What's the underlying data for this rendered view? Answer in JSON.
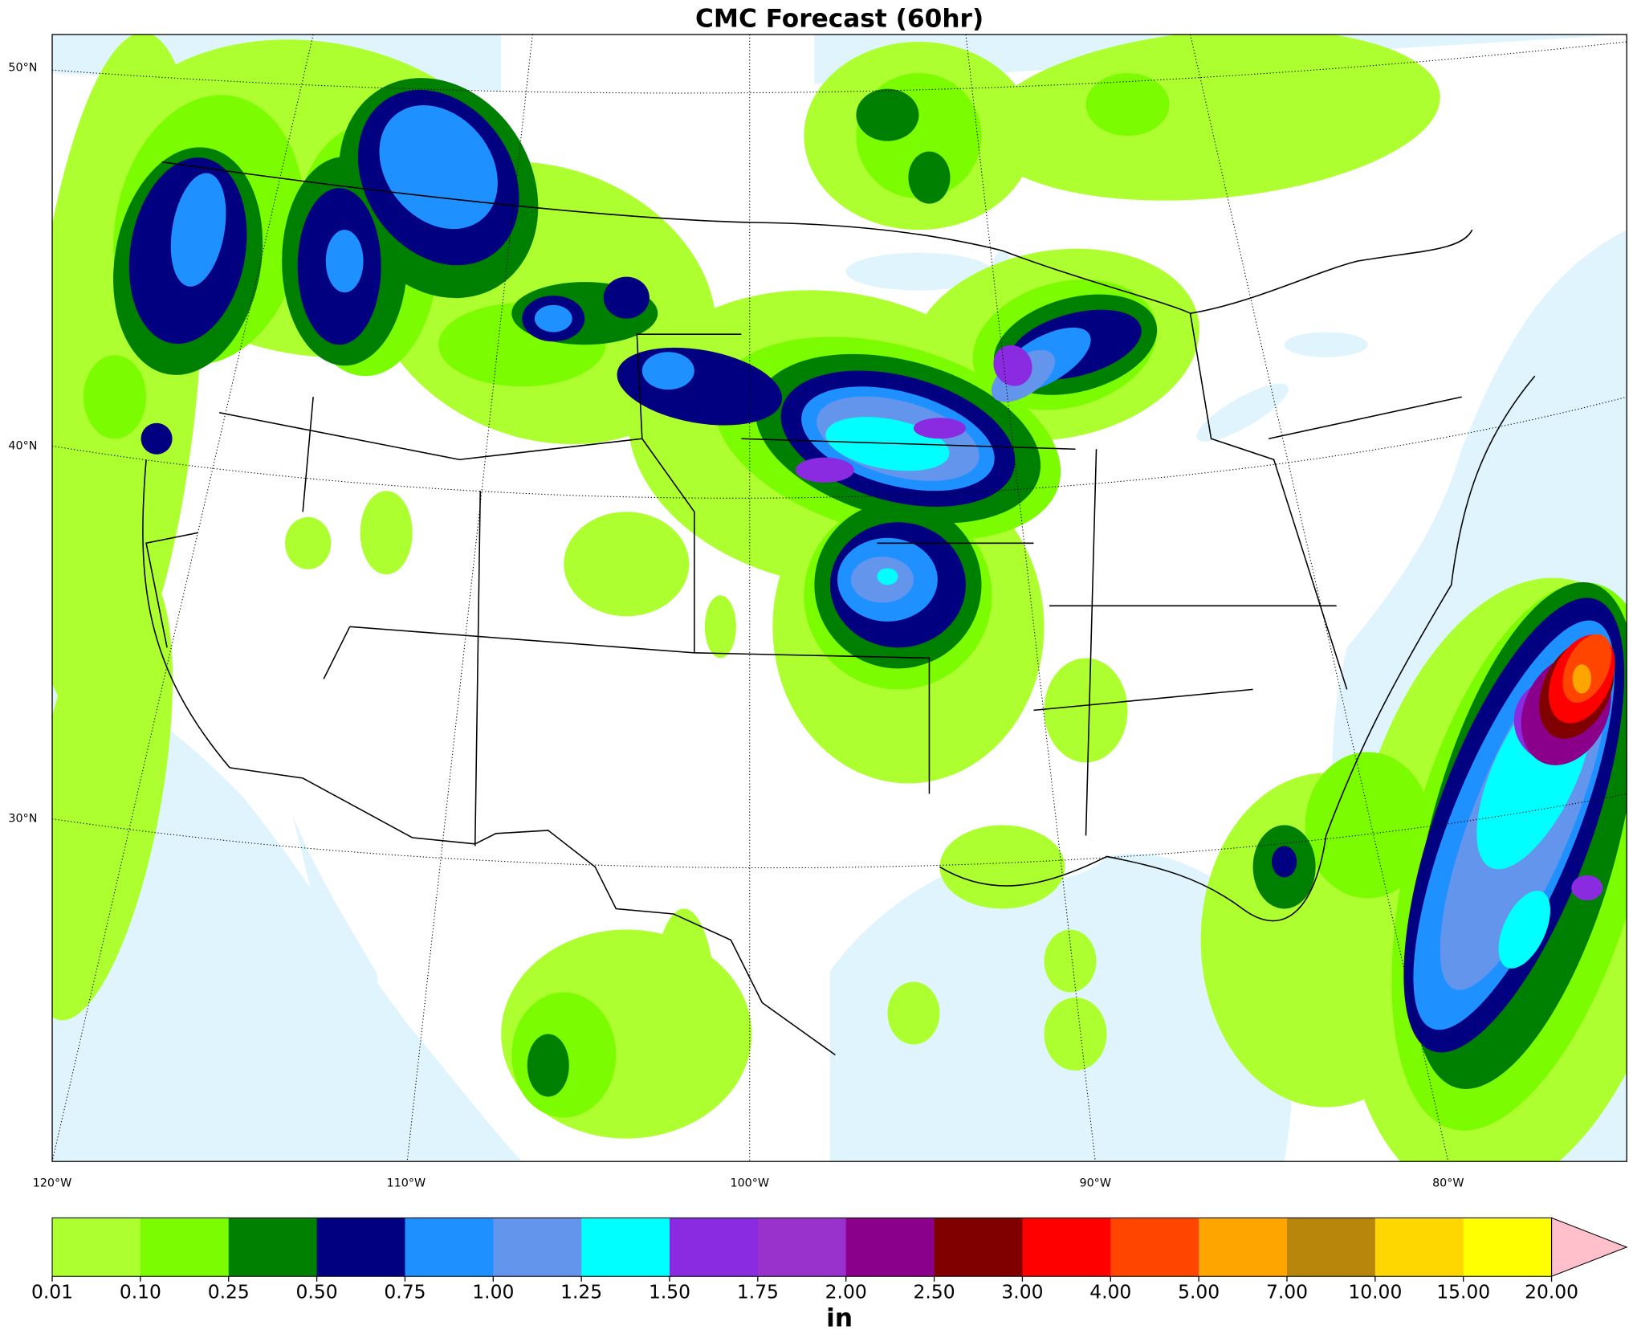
{
  "title": "CMC Forecast (60hr)",
  "map": {
    "lat_labels": [
      "50°N",
      "40°N",
      "30°N"
    ],
    "lon_labels": [
      "120°W",
      "110°W",
      "100°W",
      "90°W",
      "80°W"
    ]
  },
  "colorbar": {
    "ticks": [
      {
        "value": 0.01,
        "label": "0.01"
      },
      {
        "value": 0.1,
        "label": "0.10"
      },
      {
        "value": 0.25,
        "label": "0.25"
      },
      {
        "value": 0.5,
        "label": "0.50"
      },
      {
        "value": 0.75,
        "label": "0.75"
      },
      {
        "value": 1,
        "label": "1.00"
      },
      {
        "value": 1.25,
        "label": "1.25"
      },
      {
        "value": 1.5,
        "label": "1.50"
      },
      {
        "value": 1.75,
        "label": "1.75"
      },
      {
        "value": 2,
        "label": "2.00"
      },
      {
        "value": 2.5,
        "label": "2.50"
      },
      {
        "value": 3,
        "label": "3.00"
      },
      {
        "value": 4,
        "label": "4.00"
      },
      {
        "value": 5,
        "label": "5.00"
      },
      {
        "value": 7,
        "label": "7.00"
      },
      {
        "value": 10,
        "label": "10.00"
      },
      {
        "value": 15,
        "label": "15.00"
      },
      {
        "value": 20,
        "label": "20.00"
      }
    ],
    "colors": [
      "#adff2f",
      "#7cfc00",
      "#008000",
      "#000080",
      "#1e90ff",
      "#6495ed",
      "#00ffff",
      "#8a2be2",
      "#9932cc",
      "#8b008b",
      "#800000",
      "#ff0000",
      "#ff4500",
      "#ffa500",
      "#b8860b",
      "#ffd700",
      "#ffff00"
    ],
    "extend_color": "#ffc0cb",
    "label": "in"
  }
}
